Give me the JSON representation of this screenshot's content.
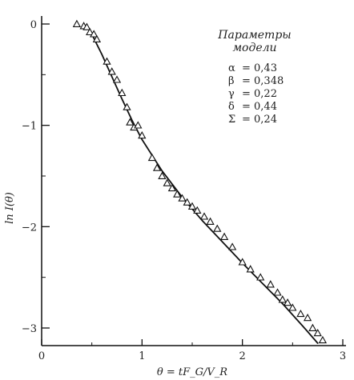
{
  "chart_data": {
    "type": "scatter",
    "xlabel": "θ = tF_G/V_R",
    "ylabel": "ln I(θ)",
    "xlim": [
      0,
      3
    ],
    "ylim": [
      -3.2,
      0.05
    ],
    "x_ticks": [
      "0",
      "1",
      "2",
      "3"
    ],
    "y_ticks": [
      "0",
      "−1",
      "−2",
      "−3"
    ],
    "legend": {
      "title_line1": "Параметры",
      "title_line2": "модели",
      "params": [
        {
          "symbol": "α",
          "value": "= 0,43"
        },
        {
          "symbol": "β",
          "value": "= 0,348"
        },
        {
          "symbol": "γ",
          "value": "= 0,22"
        },
        {
          "symbol": "δ",
          "value": "= 0,44"
        },
        {
          "symbol": "Σ",
          "value": "= 0,24"
        }
      ]
    },
    "experimental_points": {
      "marker": "triangle-open",
      "x": [
        0.35,
        0.42,
        0.45,
        0.48,
        0.52,
        0.55,
        0.65,
        0.7,
        0.75,
        0.8,
        0.85,
        0.88,
        0.92,
        0.96,
        1.0,
        1.1,
        1.15,
        1.2,
        1.25,
        1.3,
        1.35,
        1.4,
        1.45,
        1.5,
        1.55,
        1.62,
        1.68,
        1.75,
        1.82,
        1.9,
        2.0,
        2.08,
        2.18,
        2.28,
        2.35,
        2.4,
        2.45,
        2.5,
        2.58,
        2.65,
        2.7,
        2.75,
        2.8
      ],
      "y": [
        0.0,
        -0.02,
        -0.03,
        -0.08,
        -0.1,
        -0.15,
        -0.37,
        -0.47,
        -0.55,
        -0.68,
        -0.82,
        -0.97,
        -1.02,
        -1.0,
        -1.1,
        -1.32,
        -1.42,
        -1.5,
        -1.57,
        -1.62,
        -1.68,
        -1.72,
        -1.76,
        -1.8,
        -1.84,
        -1.9,
        -1.95,
        -2.02,
        -2.1,
        -2.2,
        -2.35,
        -2.42,
        -2.5,
        -2.57,
        -2.65,
        -2.72,
        -2.75,
        -2.8,
        -2.86,
        -2.9,
        -3.0,
        -3.05,
        -3.12
      ]
    },
    "model_curve": {
      "x": [
        0.45,
        0.5,
        0.55,
        0.6,
        0.7,
        0.8,
        0.9,
        1.0,
        1.2,
        1.4,
        1.6,
        1.8,
        2.0,
        2.2,
        2.4,
        2.6,
        2.75
      ],
      "y": [
        -0.02,
        -0.1,
        -0.2,
        -0.3,
        -0.52,
        -0.74,
        -0.95,
        -1.14,
        -1.45,
        -1.71,
        -1.94,
        -2.15,
        -2.36,
        -2.56,
        -2.76,
        -2.98,
        -3.15
      ]
    }
  }
}
